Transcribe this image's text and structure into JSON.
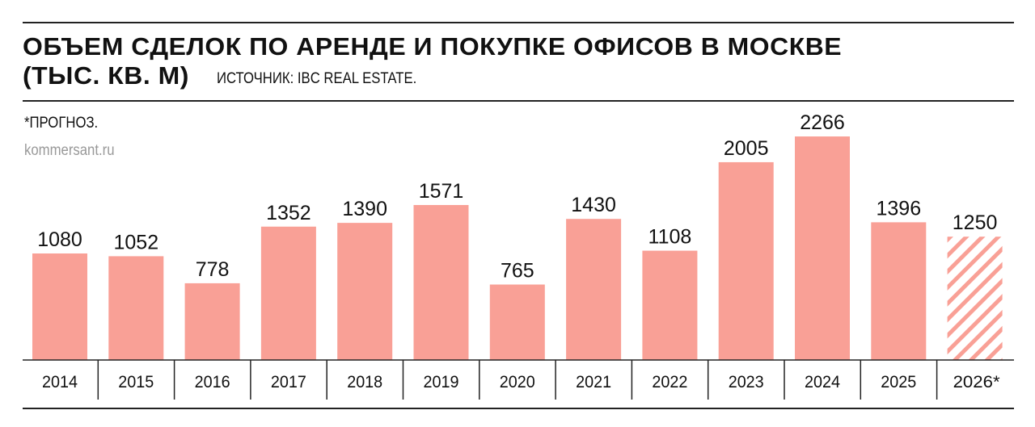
{
  "chart_data": {
    "type": "bar",
    "title": "ОБЪЕМ СДЕЛОК ПО АРЕНДЕ И ПОКУПКЕ ОФИСОВ В МОСКВЕ",
    "subtitle": "(ТЫС. КВ. М)",
    "source": "ИСТОЧНИК: IBC REAL ESTATE.",
    "note": "*ПРОГНОЗ.",
    "site": "kommersant.ru",
    "categories": [
      "2014",
      "2015",
      "2016",
      "2017",
      "2018",
      "2019",
      "2020",
      "2021",
      "2022",
      "2023",
      "2024",
      "2025",
      "2026*"
    ],
    "values": [
      1080,
      1052,
      778,
      1352,
      1390,
      1571,
      765,
      1430,
      1108,
      2005,
      2266,
      1396,
      1250
    ],
    "forecast": [
      false,
      false,
      false,
      false,
      false,
      false,
      false,
      false,
      false,
      false,
      false,
      false,
      true
    ],
    "ylim": [
      0,
      2400
    ],
    "grid": false,
    "bar_color": "#f9a096",
    "forecast_style": "hatched"
  }
}
